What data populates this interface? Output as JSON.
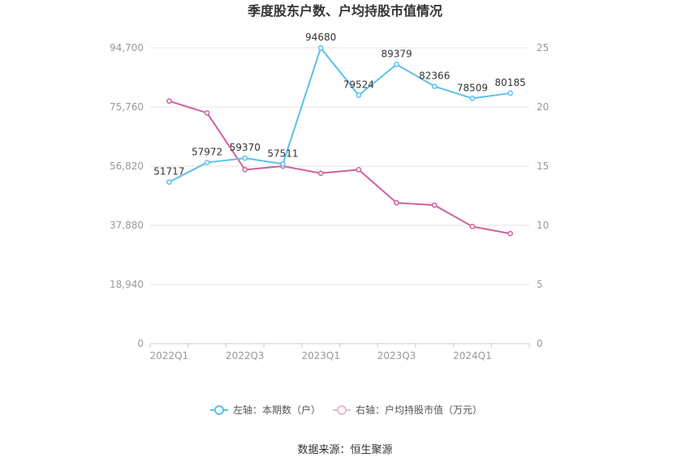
{
  "chart_data": {
    "type": "line",
    "title": "季度股东户数、户均持股市值情况",
    "categories": [
      "2022Q1",
      "2022Q2",
      "2022Q3",
      "2022Q4",
      "2023Q1",
      "2023Q2",
      "2023Q3",
      "2023Q4",
      "2024Q1",
      "2024Q2"
    ],
    "x_tick_labels": [
      "2022Q1",
      "",
      "2022Q3",
      "",
      "2023Q1",
      "",
      "2023Q3",
      "",
      "2024Q1",
      ""
    ],
    "y_left": {
      "min": 0,
      "max": 94700,
      "ticks": [
        "0",
        "18,940",
        "37,880",
        "56,820",
        "75,760",
        "94,700"
      ]
    },
    "y_right": {
      "min": 0,
      "max": 25,
      "ticks": [
        "0",
        "5",
        "10",
        "15",
        "20",
        "25"
      ]
    },
    "grid": true,
    "legend_position": "bottom",
    "series": [
      {
        "name": "左轴：本期数（户）",
        "axis": "left",
        "color": "#5BC0EB",
        "values": [
          51717,
          57972,
          59370,
          57511,
          94680,
          79524,
          89379,
          82366,
          78509,
          80185
        ],
        "labels": [
          "51717",
          "57972",
          "59370",
          "57511",
          "94680",
          "79524",
          "89379",
          "82366",
          "78509",
          "80185"
        ]
      },
      {
        "name": "右轴：户均持股市值（万元）",
        "axis": "right",
        "color": "#D2609E",
        "values": [
          20.5,
          19.5,
          14.7,
          15.0,
          14.4,
          14.7,
          11.9,
          11.7,
          9.9,
          9.3
        ]
      }
    ]
  },
  "source": "数据来源：恒生聚源"
}
